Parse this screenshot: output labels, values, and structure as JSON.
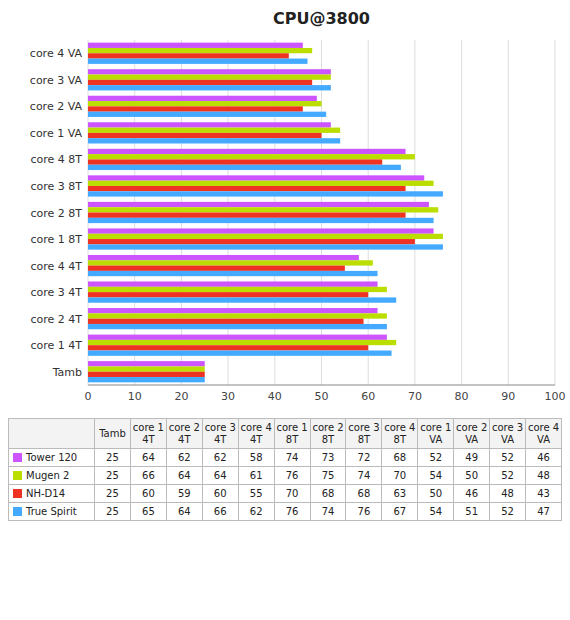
{
  "chart_data": {
    "type": "bar",
    "orientation": "horizontal",
    "title": "CPU@3800",
    "categories": [
      "Tamb",
      "core 1  4T",
      "core 2 4T",
      "core 3  4T",
      "core 4  4T",
      "core 1  8T",
      "core 2 8T",
      "core 3  8T",
      "core 4  8T",
      "core 1  VA",
      "core 2 VA",
      "core 3 VA",
      "core 4 VA"
    ],
    "series": [
      {
        "name": "Tower 120",
        "color": "#cc55ff",
        "values": [
          25,
          64,
          62,
          62,
          58,
          74,
          73,
          72,
          68,
          52,
          49,
          52,
          46
        ]
      },
      {
        "name": "Mugen 2",
        "color": "#bbdd00",
        "values": [
          25,
          66,
          64,
          64,
          61,
          76,
          75,
          74,
          70,
          54,
          50,
          52,
          48
        ]
      },
      {
        "name": "NH-D14",
        "color": "#ee3322",
        "values": [
          25,
          60,
          59,
          60,
          55,
          70,
          68,
          68,
          63,
          50,
          46,
          48,
          43
        ]
      },
      {
        "name": "True Spirit",
        "color": "#44aaff",
        "values": [
          25,
          65,
          64,
          66,
          62,
          76,
          74,
          76,
          67,
          54,
          51,
          52,
          47
        ]
      }
    ],
    "xlim": [
      0,
      100
    ],
    "xticks": [
      0,
      10,
      20,
      30,
      40,
      50,
      60,
      70,
      80,
      90,
      100
    ],
    "grid": true,
    "table_col_labels": [
      "Tamb",
      "core 1\n4T",
      "core 2\n4T",
      "core 3\n4T",
      "core 4\n4T",
      "core 1\n8T",
      "core 2\n8T",
      "core 3\n8T",
      "core 4\n8T",
      "core 1\nVA",
      "core 2\nVA",
      "core 3\nVA",
      "core 4\nVA"
    ]
  }
}
